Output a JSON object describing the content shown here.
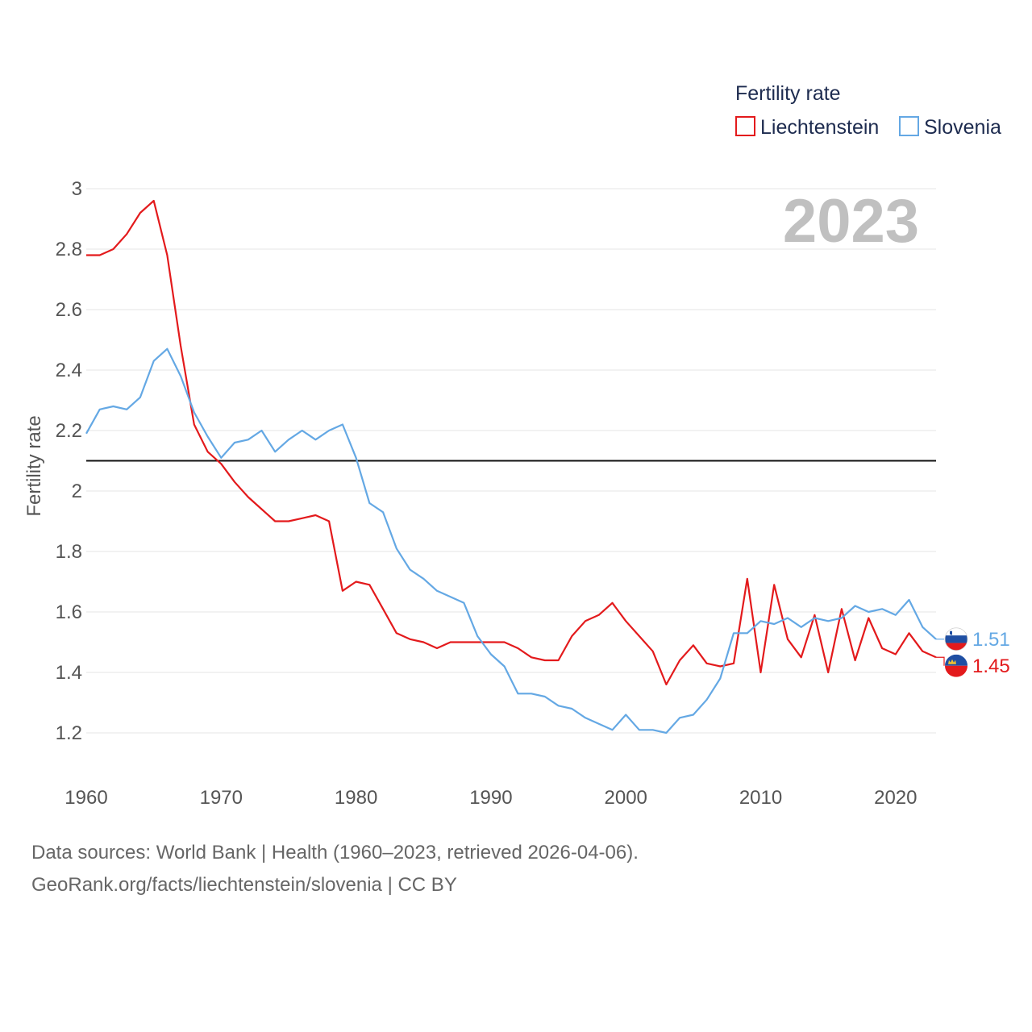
{
  "chart_data": {
    "type": "line",
    "legend_title": "Fertility rate",
    "ylabel": "Fertility rate",
    "year_label": "2023",
    "ylim": [
      1.05,
      3.0
    ],
    "xlim": [
      1960,
      2023
    ],
    "y_ticks": [
      1.2,
      1.4,
      1.6,
      1.8,
      2,
      2.2,
      2.4,
      2.6,
      2.8,
      3
    ],
    "x_ticks": [
      1960,
      1970,
      1980,
      1990,
      2000,
      2010,
      2020
    ],
    "reference_line": 2.1,
    "x": [
      1960,
      1961,
      1962,
      1963,
      1964,
      1965,
      1966,
      1967,
      1968,
      1969,
      1970,
      1971,
      1972,
      1973,
      1974,
      1975,
      1976,
      1977,
      1978,
      1979,
      1980,
      1981,
      1982,
      1983,
      1984,
      1985,
      1986,
      1987,
      1988,
      1989,
      1990,
      1991,
      1992,
      1993,
      1994,
      1995,
      1996,
      1997,
      1998,
      1999,
      2000,
      2001,
      2002,
      2003,
      2004,
      2005,
      2006,
      2007,
      2008,
      2009,
      2010,
      2011,
      2012,
      2013,
      2014,
      2015,
      2016,
      2017,
      2018,
      2019,
      2020,
      2021,
      2022,
      2023
    ],
    "series": [
      {
        "name": "Liechtenstein",
        "color": "#e31a1c",
        "end_label": "1.45",
        "values": [
          2.78,
          2.78,
          2.8,
          2.85,
          2.92,
          2.96,
          2.78,
          2.48,
          2.22,
          2.13,
          2.09,
          2.03,
          1.98,
          1.94,
          1.9,
          1.9,
          1.91,
          1.92,
          1.9,
          1.67,
          1.7,
          1.69,
          1.61,
          1.53,
          1.51,
          1.5,
          1.48,
          1.5,
          1.5,
          1.5,
          1.5,
          1.5,
          1.48,
          1.45,
          1.44,
          1.44,
          1.52,
          1.57,
          1.59,
          1.63,
          1.57,
          1.52,
          1.47,
          1.36,
          1.44,
          1.49,
          1.43,
          1.42,
          1.43,
          1.71,
          1.4,
          1.69,
          1.51,
          1.45,
          1.59,
          1.4,
          1.61,
          1.44,
          1.58,
          1.48,
          1.46,
          1.53,
          1.47,
          1.45
        ]
      },
      {
        "name": "Slovenia",
        "color": "#64a8e4",
        "end_label": "1.51",
        "values": [
          2.19,
          2.27,
          2.28,
          2.27,
          2.31,
          2.43,
          2.47,
          2.38,
          2.26,
          2.18,
          2.11,
          2.16,
          2.17,
          2.2,
          2.13,
          2.17,
          2.2,
          2.17,
          2.2,
          2.22,
          2.11,
          1.96,
          1.93,
          1.81,
          1.74,
          1.71,
          1.67,
          1.65,
          1.63,
          1.52,
          1.46,
          1.42,
          1.33,
          1.33,
          1.32,
          1.29,
          1.28,
          1.25,
          1.23,
          1.21,
          1.26,
          1.21,
          1.21,
          1.2,
          1.25,
          1.26,
          1.31,
          1.38,
          1.53,
          1.53,
          1.57,
          1.56,
          1.58,
          1.55,
          1.58,
          1.57,
          1.58,
          1.62,
          1.6,
          1.61,
          1.59,
          1.64,
          1.55,
          1.51
        ]
      }
    ]
  },
  "footer": {
    "source_line": "Data sources: World Bank | Health (1960–2023, retrieved 2026-04-06).",
    "credit_line": "GeoRank.org/facts/liechtenstein/slovenia | CC BY"
  }
}
